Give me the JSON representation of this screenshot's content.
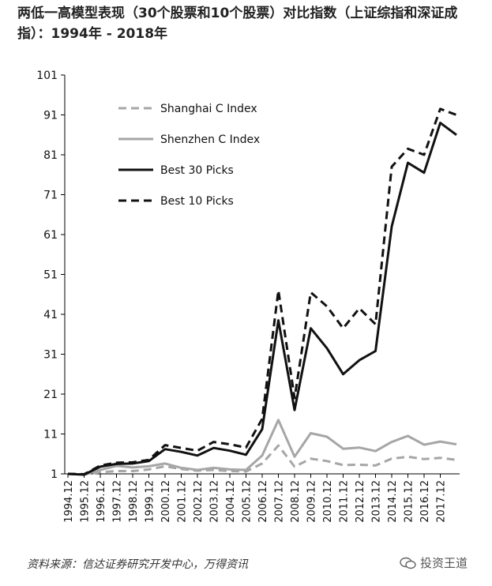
{
  "title": "两低一高模型表现（30个股票和10个股票）对比指数（上证综指和深证成指）：1994年 - 2018年",
  "source": "资料来源：信达证券研究开发中心，万得资讯",
  "watermark": "投资王道",
  "colors": {
    "shanghai": "#a6a6a6",
    "shenzhen": "#a6a6a6",
    "best30": "#111111",
    "best10": "#111111",
    "axis": "#000000"
  },
  "chart_data": {
    "type": "line",
    "title": "两低一高模型表现（30个股票和10个股票）对比指数（上证综指和深证成指）：1994年 - 2018年",
    "xlabel": "",
    "ylabel": "",
    "ylim": [
      1,
      101
    ],
    "yticks": [
      1,
      11,
      21,
      31,
      41,
      51,
      61,
      71,
      81,
      91,
      101
    ],
    "grid": false,
    "legend_position": "top-left",
    "x": [
      "1994.12",
      "1995.12",
      "1996.12",
      "1997.12",
      "1998.12",
      "1999.12",
      "2000.12",
      "2001.12",
      "2002.12",
      "2003.12",
      "2004.12",
      "2005.12",
      "2006.12",
      "2007.12",
      "2008.12",
      "2009.12",
      "2010.12",
      "2011.12",
      "2012.12",
      "2013.12",
      "2014.12",
      "2015.12",
      "2016.12",
      "2017.12",
      "2018.08"
    ],
    "xticklabels": [
      "1994.12",
      "1995.12",
      "1996.12",
      "1997.12",
      "1998.12",
      "1999.12",
      "2000.12",
      "2001.12",
      "2002.12",
      "2003.12",
      "2004.12",
      "2005.12",
      "2006.12",
      "2007.12",
      "2008.12",
      "2009.12",
      "2010.12",
      "2011.12",
      "2012.12",
      "2013.12",
      "2014.12",
      "2015.12",
      "2016.12",
      "2017.12"
    ],
    "series": [
      {
        "name": "Shanghai C Index",
        "style": "dashed",
        "colorKey": "shanghai",
        "width": 3,
        "values": [
          1,
          0.9,
          1.4,
          1.7,
          1.7,
          2.1,
          2.9,
          2.2,
          1.8,
          2.0,
          1.7,
          1.6,
          3.6,
          8.1,
          2.8,
          4.8,
          4.2,
          3.2,
          3.3,
          3.1,
          4.8,
          5.3,
          4.7,
          5.0,
          4.5
        ]
      },
      {
        "name": "Shenzhen C Index",
        "style": "solid",
        "colorKey": "shenzhen",
        "width": 3,
        "values": [
          1,
          0.8,
          2.0,
          3.0,
          2.6,
          2.9,
          3.6,
          2.5,
          2.0,
          2.5,
          2.1,
          2.0,
          5.6,
          14.5,
          5.3,
          11.2,
          10.3,
          7.3,
          7.6,
          6.7,
          9.0,
          10.5,
          8.3,
          9.1,
          8.4
        ]
      },
      {
        "name": "Best 30 Picks",
        "style": "solid",
        "colorKey": "best30",
        "width": 3,
        "values": [
          1,
          0.8,
          2.8,
          3.5,
          3.6,
          4.2,
          7.2,
          6.5,
          5.6,
          7.5,
          6.8,
          5.8,
          12.2,
          39.5,
          17.0,
          37.5,
          32.5,
          26.0,
          29.5,
          31.8,
          63.0,
          79.0,
          76.5,
          89.0,
          86.0
        ]
      },
      {
        "name": "Best 10 Picks",
        "style": "dashed",
        "colorKey": "best10",
        "width": 3,
        "values": [
          1,
          0.9,
          3.1,
          3.8,
          3.9,
          4.5,
          8.2,
          7.5,
          6.8,
          9.0,
          8.4,
          7.6,
          14.8,
          47.0,
          20.0,
          46.5,
          43.0,
          37.5,
          42.5,
          38.5,
          78.0,
          82.5,
          81.0,
          92.5,
          91.0
        ]
      }
    ]
  }
}
